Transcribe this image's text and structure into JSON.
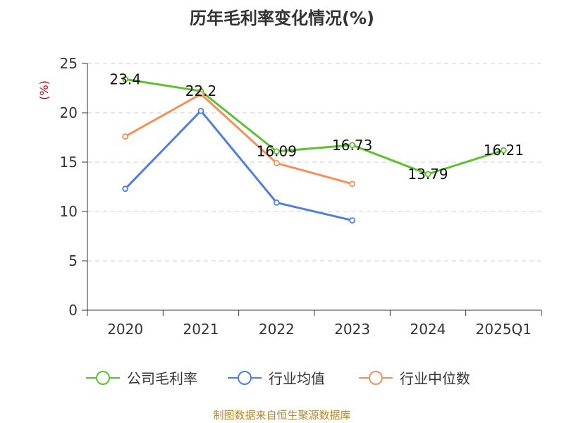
{
  "chart_data": {
    "type": "line",
    "title": "历年毛利率变化情况(%)",
    "ylabel": "(%)",
    "xlabel": "",
    "categories": [
      "2020",
      "2021",
      "2022",
      "2023",
      "2024",
      "2025Q1"
    ],
    "ylim": [
      0,
      25
    ],
    "yticks": [
      0,
      5,
      10,
      15,
      20,
      25
    ],
    "grid": true,
    "legend_position": "bottom",
    "series": [
      {
        "name": "公司毛利率",
        "color": "#5ec22e",
        "values": [
          23.4,
          22.2,
          16.09,
          16.73,
          13.79,
          16.21
        ],
        "labels": [
          "23.4",
          "22.2",
          "16.09",
          "16.73",
          "13.79",
          "16.21"
        ]
      },
      {
        "name": "行业均值",
        "color": "#4f7fdc",
        "values": [
          12.3,
          20.2,
          10.9,
          9.1,
          null,
          null
        ]
      },
      {
        "name": "行业中位数",
        "color": "#f4905a",
        "values": [
          17.6,
          21.9,
          14.9,
          12.8,
          null,
          null
        ]
      }
    ]
  },
  "source": "制图数据来自恒生聚源数据库",
  "colors": {
    "ylabel": "#cc0000",
    "source": "#b8862b",
    "grid": "#cccccc"
  }
}
